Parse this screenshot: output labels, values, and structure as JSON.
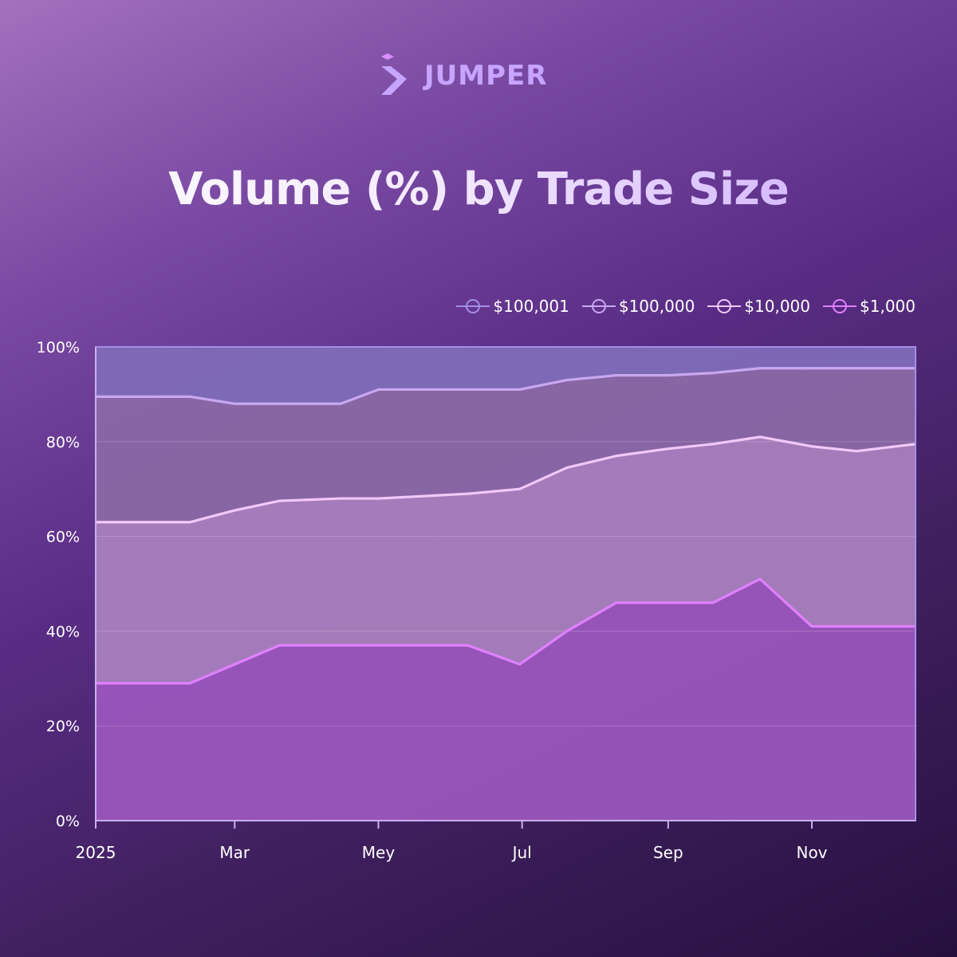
{
  "brand": {
    "name": "JUMPER",
    "logo_icon": "jumper-logo-icon",
    "color": "#c7a4ff"
  },
  "title": "Volume (%) by Trade Size",
  "chart_data": {
    "type": "area",
    "stacked": true,
    "title": "Volume (%) by Trade Size",
    "xlabel": "",
    "ylabel": "",
    "x_ticks": [
      "2025",
      "Mar",
      "Mey",
      "Jul",
      "Sep",
      "Nov"
    ],
    "y_ticks": [
      "0%",
      "20%",
      "40%",
      "60%",
      "80%",
      "100%"
    ],
    "ylim": [
      0,
      100
    ],
    "x": [
      "2025-01-01",
      "2025-01-20",
      "2025-02-10",
      "2025-03-01",
      "2025-03-20",
      "2025-04-15",
      "2025-05-01",
      "2025-05-20",
      "2025-06-08",
      "2025-06-30",
      "2025-07-20",
      "2025-08-10",
      "2025-09-01",
      "2025-09-20",
      "2025-10-10",
      "2025-11-01",
      "2025-11-20",
      "2025-12-15"
    ],
    "x_tick_values": [
      "2025-01-01",
      "2025-03-01",
      "2025-05-01",
      "2025-07-01",
      "2025-09-01",
      "2025-11-01"
    ],
    "x_max": "2025-12-15",
    "grid": true,
    "legend_position": "top-right",
    "series": [
      {
        "name": "$1,000",
        "color": "#e080ff",
        "fill": "#9a55bc",
        "cumulative": [
          29,
          29,
          29,
          33,
          37,
          37,
          37,
          37,
          37,
          33,
          40,
          46,
          46,
          46,
          51,
          41,
          41,
          41
        ]
      },
      {
        "name": "$10,000",
        "color": "#f2c8f8",
        "fill": "#a97fbd",
        "cumulative": [
          63,
          63,
          63,
          65.5,
          67.5,
          68,
          68,
          68.5,
          69,
          70,
          74.5,
          77,
          78.5,
          79.5,
          81,
          79,
          78,
          79.5
        ]
      },
      {
        "name": "$100,000",
        "color": "#c8a8f0",
        "fill": "#8a68a5",
        "cumulative": [
          89.5,
          89.5,
          89.5,
          88,
          88,
          88,
          91,
          91,
          91,
          91,
          93,
          94,
          94,
          94.5,
          95.5,
          95.5,
          95.5,
          95.5
        ]
      },
      {
        "name": "$100,001",
        "color": "#a48ee8",
        "fill": "#7f6bb8",
        "cumulative": [
          100,
          100,
          100,
          100,
          100,
          100,
          100,
          100,
          100,
          100,
          100,
          100,
          100,
          100,
          100,
          100,
          100,
          100
        ]
      }
    ]
  }
}
